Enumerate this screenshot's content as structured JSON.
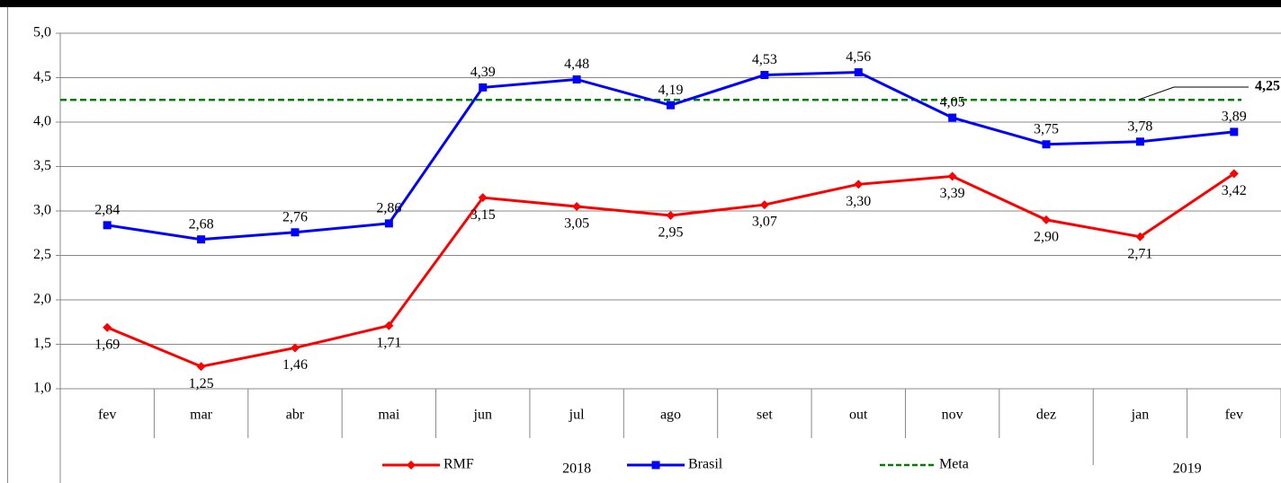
{
  "chart_data": {
    "type": "line",
    "categories": [
      "fev",
      "mar",
      "abr",
      "mai",
      "jun",
      "jul",
      "ago",
      "set",
      "out",
      "nov",
      "dez",
      "jan",
      "fev"
    ],
    "category_groups": [
      "2018",
      "2018",
      "2018",
      "2018",
      "2018",
      "2018",
      "2018",
      "2018",
      "2018",
      "2018",
      "2018",
      "2019",
      "2019"
    ],
    "series": [
      {
        "name": "RMF",
        "color": "#ff0000",
        "marker": "diamond",
        "values": [
          1.69,
          1.25,
          1.46,
          1.71,
          3.15,
          3.05,
          2.95,
          3.07,
          3.3,
          3.39,
          2.9,
          2.71,
          3.42
        ],
        "value_labels": [
          "1,69",
          "1,25",
          "1,46",
          "1,71",
          "3,15",
          "3,05",
          "2,95",
          "3,07",
          "3,30",
          "3,39",
          "2,90",
          "2,71",
          "3,42"
        ]
      },
      {
        "name": "Brasil",
        "color": "#0000ff",
        "marker": "square",
        "values": [
          2.84,
          2.68,
          2.76,
          2.86,
          4.39,
          4.48,
          4.19,
          4.53,
          4.56,
          4.05,
          3.75,
          3.78,
          3.89
        ],
        "value_labels": [
          "2,84",
          "2,68",
          "2,76",
          "2,86",
          "4,39",
          "4,48",
          "4,19",
          "4,53",
          "4,56",
          "4,05",
          "3,75",
          "3,78",
          "3,89"
        ]
      }
    ],
    "reference_line": {
      "name": "Meta",
      "value": 4.25,
      "value_label": "4,25",
      "color": "#008000",
      "label_color": "#4f6228"
    },
    "ylim": [
      1.0,
      5.0
    ],
    "yticks": [
      {
        "value": 1.0,
        "label": "1,0"
      },
      {
        "value": 1.5,
        "label": "1,5"
      },
      {
        "value": 2.0,
        "label": "2,0"
      },
      {
        "value": 2.5,
        "label": "2,5"
      },
      {
        "value": 3.0,
        "label": "3,0"
      },
      {
        "value": 3.5,
        "label": "3,5"
      },
      {
        "value": 4.0,
        "label": "4,0"
      },
      {
        "value": 4.5,
        "label": "4,5"
      },
      {
        "value": 5.0,
        "label": "5,0"
      }
    ],
    "grid": true
  }
}
